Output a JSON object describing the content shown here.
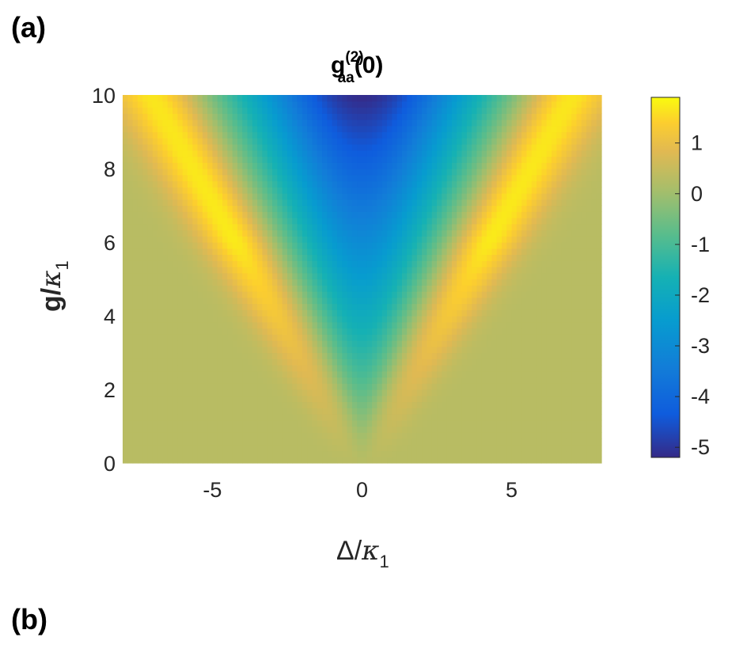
{
  "panels": {
    "a_label": "(a)",
    "b_label": "(b)"
  },
  "chart_data": {
    "type": "heatmap",
    "title": {
      "base": "g",
      "superscript": "(2)",
      "subscript": "aa",
      "suffix": "(0)"
    },
    "xlabel": {
      "main": "Δ/",
      "symbol": "κ",
      "subscript": "1"
    },
    "ylabel": {
      "main": "g/",
      "symbol": "κ",
      "subscript": "1"
    },
    "xlim": [
      -8,
      8
    ],
    "ylim": [
      0,
      10
    ],
    "x_ticks": [
      -5,
      0,
      5
    ],
    "x_tick_labels": [
      "-5",
      "0",
      "5"
    ],
    "y_ticks": [
      0,
      2,
      4,
      6,
      8,
      10
    ],
    "y_tick_labels": [
      "0",
      "2",
      "4",
      "6",
      "8",
      "10"
    ],
    "colorbar": {
      "range": [
        -5.2,
        1.9
      ],
      "ticks": [
        1,
        0,
        -1,
        -2,
        -3,
        -4,
        -5
      ],
      "tick_labels": [
        "1",
        "0",
        "-1",
        "-2",
        "-3",
        "-4",
        "-5"
      ],
      "colormap": "parula"
    },
    "surface_description_values": {
      "center_min_at_y10": -5.2,
      "ridge_peak_value": 1.9,
      "background_value": 0.3,
      "ridge_position_at_y10_abs_x": 6.9
    },
    "grid": false,
    "legend": "none"
  }
}
